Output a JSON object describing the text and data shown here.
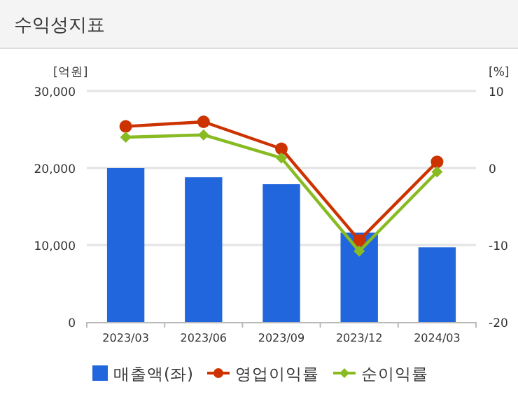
{
  "chart_data": {
    "type": "bar",
    "title": "수익성지표",
    "ylabel": "[억원]",
    "y2label": "[%]",
    "categories": [
      "2023/03",
      "2023/06",
      "2023/09",
      "2023/12",
      "2024/03"
    ],
    "series": [
      {
        "name": "매출액(좌)",
        "color": "#2266dd",
        "values": [
          20000,
          18800,
          17900,
          11600,
          9700
        ]
      },
      {
        "name": "영업이익률",
        "type": "line",
        "axis": "y2",
        "marker": "circle",
        "color": "#cc3300",
        "values": [
          5.4,
          6.0,
          2.5,
          -9.4,
          0.8
        ]
      },
      {
        "name": "순이익률",
        "type": "line",
        "axis": "y2",
        "marker": "diamond",
        "color": "#88bb22",
        "values": [
          4.0,
          4.3,
          1.3,
          -10.8,
          -0.5
        ]
      }
    ],
    "ylim": [
      0,
      30000
    ],
    "yticks": [
      {
        "value": 0,
        "label": "0"
      },
      {
        "value": 10000,
        "label": "10,000"
      },
      {
        "value": 20000,
        "label": "20,000"
      },
      {
        "value": 30000,
        "label": "30,000"
      }
    ],
    "y2lim": [
      -20,
      10
    ],
    "y2ticks": [
      -20,
      -10,
      0,
      10
    ],
    "grid": "y",
    "legend": "bottom"
  }
}
